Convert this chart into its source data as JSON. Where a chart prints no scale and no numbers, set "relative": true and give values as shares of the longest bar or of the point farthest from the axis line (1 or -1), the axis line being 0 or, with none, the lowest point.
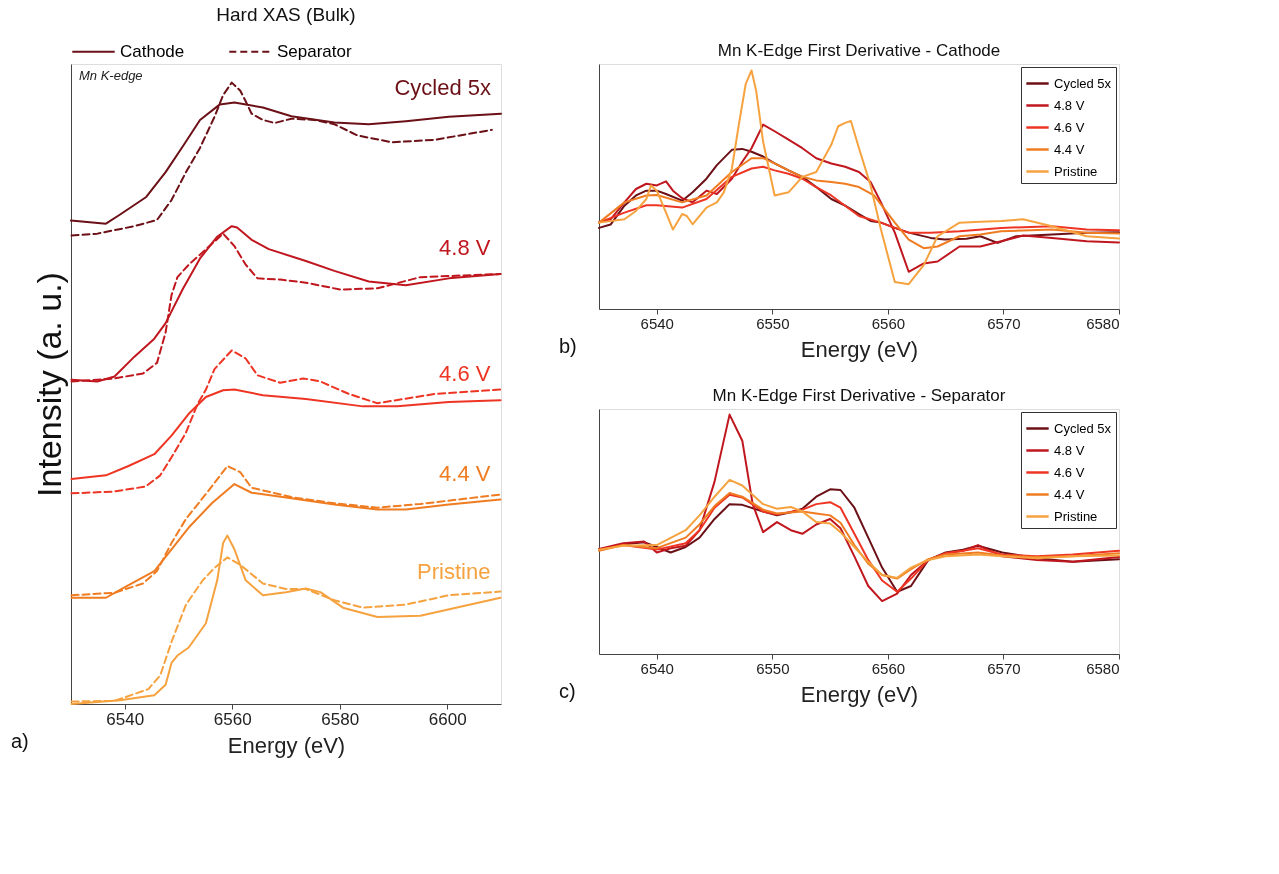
{
  "chart_data": [
    {
      "type": "line",
      "title": "Hard XAS (Bulk)",
      "xlabel": "Energy (eV)",
      "ylabel": "Intensity (a. u.)",
      "relative": true,
      "tick_labels": "x",
      "xlim": [
        6530,
        6610
      ],
      "xticks": [
        6540,
        6560,
        6580,
        6600
      ],
      "grid": false,
      "legend": "top",
      "marker": "none",
      "series": [
        {
          "name": "Cathode",
          "color": "#6b1016",
          "line_style": "solid",
          "x": [
            6530,
            6536.5,
            6539,
            6544,
            6547.6,
            6551,
            6554,
            6557.7,
            6560.4,
            6565.7,
            6571,
            6579,
            6585.4,
            6592.3,
            6600.3,
            6610
          ],
          "values": [
            0.778,
            0.773,
            0.787,
            0.816,
            0.856,
            0.9,
            0.94,
            0.965,
            0.968,
            0.96,
            0.946,
            0.936,
            0.933,
            0.938,
            0.945,
            0.95
          ]
        },
        {
          "name": "Separator",
          "color": "#6b1016",
          "line_style": "dashed",
          "x": [
            6530.1,
            6534.9,
            6541.8,
            6546,
            6548.7,
            6551.4,
            6554,
            6556.7,
            6558.3,
            6559.9,
            6561.5,
            6562.5,
            6563.6,
            6565.7,
            6567.9,
            6571,
            6575.3,
            6579,
            6583.3,
            6589.7,
            6597.7,
            6608.3
          ],
          "values": [
            0.754,
            0.757,
            0.769,
            0.779,
            0.811,
            0.856,
            0.895,
            0.945,
            0.98,
            1.0,
            0.987,
            0.97,
            0.95,
            0.94,
            0.935,
            0.942,
            0.94,
            0.933,
            0.915,
            0.904,
            0.908,
            0.924
          ]
        },
        {
          "color": "#c0171f",
          "line_style": "solid",
          "x": [
            6530.1,
            6534.9,
            6538.1,
            6541.8,
            6545.5,
            6547.6,
            6550.8,
            6554,
            6557.2,
            6559.9,
            6560.9,
            6563.6,
            6566.8,
            6573.7,
            6579,
            6585.4,
            6592.3,
            6600.3,
            6609.9
          ],
          "values": [
            0.522,
            0.519,
            0.527,
            0.559,
            0.588,
            0.613,
            0.668,
            0.717,
            0.752,
            0.769,
            0.767,
            0.747,
            0.732,
            0.713,
            0.697,
            0.68,
            0.674,
            0.685,
            0.692
          ]
        },
        {
          "color": "#c0171f",
          "line_style": "dashed",
          "x": [
            6530.1,
            6538.1,
            6543.4,
            6546,
            6547.6,
            6548.7,
            6549.8,
            6551.9,
            6554.5,
            6558.3,
            6560.4,
            6562.5,
            6564.7,
            6568.9,
            6573.7,
            6580.1,
            6587,
            6595,
            6609.9
          ],
          "values": [
            0.519,
            0.524,
            0.532,
            0.549,
            0.598,
            0.658,
            0.687,
            0.707,
            0.727,
            0.757,
            0.737,
            0.707,
            0.685,
            0.683,
            0.678,
            0.667,
            0.669,
            0.687,
            0.692
          ]
        },
        {
          "color": "#ee3524",
          "line_style": "solid",
          "x": [
            6530.1,
            6536.5,
            6540.7,
            6545.5,
            6548.7,
            6551.9,
            6555.1,
            6558.3,
            6560.4,
            6565.7,
            6573.7,
            6584.3,
            6590.7,
            6600.3,
            6609.9
          ],
          "values": [
            0.362,
            0.368,
            0.383,
            0.402,
            0.432,
            0.467,
            0.494,
            0.505,
            0.506,
            0.497,
            0.491,
            0.479,
            0.479,
            0.486,
            0.489
          ]
        },
        {
          "color": "#ee3524",
          "line_style": "dashed",
          "x": [
            6530.1,
            6538.1,
            6543.9,
            6546.6,
            6548.7,
            6551.4,
            6553.5,
            6555.1,
            6556.7,
            6559.9,
            6562.5,
            6564.7,
            6568.9,
            6573.2,
            6576.4,
            6581.7,
            6587,
            6597.7,
            6609.9
          ],
          "values": [
            0.339,
            0.342,
            0.35,
            0.368,
            0.397,
            0.437,
            0.482,
            0.506,
            0.539,
            0.569,
            0.556,
            0.529,
            0.517,
            0.524,
            0.519,
            0.499,
            0.484,
            0.499,
            0.506
          ]
        },
        {
          "color": "#f07c22",
          "line_style": "solid",
          "x": [
            6530.1,
            6536.5,
            6540.2,
            6545.5,
            6548.7,
            6551.9,
            6556.2,
            6560.4,
            6563.6,
            6571,
            6579,
            6587,
            6592.3,
            6600.3,
            6609.9
          ],
          "values": [
            0.171,
            0.171,
            0.189,
            0.214,
            0.249,
            0.284,
            0.323,
            0.354,
            0.34,
            0.331,
            0.321,
            0.313,
            0.313,
            0.321,
            0.329
          ]
        },
        {
          "color": "#f07c22",
          "line_style": "dashed",
          "x": [
            6530.1,
            6538.1,
            6543.4,
            6546,
            6548.7,
            6551.4,
            6555.1,
            6559.1,
            6561.5,
            6563.6,
            6571,
            6579,
            6587,
            6595,
            6609.9
          ],
          "values": [
            0.175,
            0.179,
            0.194,
            0.214,
            0.259,
            0.298,
            0.338,
            0.383,
            0.373,
            0.348,
            0.333,
            0.323,
            0.316,
            0.322,
            0.337
          ]
        },
        {
          "color": "#f5a23f",
          "line_style": "solid",
          "x": [
            6530.1,
            6539.1,
            6545.5,
            6547.6,
            6548.7,
            6549.8,
            6551.9,
            6555.1,
            6557.2,
            6558.3,
            6559.1,
            6560.4,
            6562.5,
            6565.7,
            6570,
            6573.7,
            6576.4,
            6580.6,
            6587,
            6595,
            6609.9
          ],
          "values": [
            0,
            0.006,
            0.014,
            0.031,
            0.066,
            0.078,
            0.091,
            0.13,
            0.199,
            0.259,
            0.271,
            0.249,
            0.199,
            0.175,
            0.18,
            0.186,
            0.18,
            0.155,
            0.14,
            0.142,
            0.171
          ]
        },
        {
          "color": "#f5a23f",
          "line_style": "dashed",
          "x": [
            6530.1,
            6538.1,
            6544.4,
            6546.6,
            6548.7,
            6551.4,
            6554.5,
            6556.7,
            6559.1,
            6561.5,
            6565.7,
            6570,
            6573.7,
            6579,
            6584.3,
            6592.3,
            6600.3,
            6609.9
          ],
          "values": [
            0.004,
            0.005,
            0.024,
            0.046,
            0.1,
            0.16,
            0.199,
            0.219,
            0.236,
            0.224,
            0.194,
            0.185,
            0.185,
            0.167,
            0.155,
            0.16,
            0.175,
            0.181
          ]
        }
      ],
      "annotations": [
        "Cycled 5x",
        "4.8 V",
        "4.6 V",
        "4.4 V",
        "Pristine",
        "Mn K-edge",
        "a)"
      ]
    },
    {
      "type": "line",
      "title": "Mn K-Edge First Derivative - Cathode",
      "xlabel": "Energy (eV)",
      "relative": true,
      "tick_labels": "x",
      "xlim": [
        6535,
        6580
      ],
      "xticks": [
        6540,
        6550,
        6560,
        6570,
        6580
      ],
      "grid": false,
      "legend": "top right",
      "marker": "none",
      "line_style": "solid",
      "series": [
        {
          "name": "Cycled 5x",
          "color": "#6b1016",
          "x": [
            6535,
            6536,
            6537.2,
            6538.2,
            6539.1,
            6540,
            6540.8,
            6542.2,
            6543.1,
            6544.3,
            6545.2,
            6546.5,
            6547.4,
            6548.2,
            6549.2,
            6550.2,
            6551.4,
            6552.6,
            6553.8,
            6555.1,
            6556.3,
            6557.5,
            6558.5,
            6559.4,
            6560.6,
            6561.8,
            6563.7,
            6564.9,
            6566.8,
            6568,
            6569.5,
            6571.1,
            6574.2,
            6577.2,
            6580
          ],
          "values": [
            0.34,
            0.354,
            0.433,
            0.476,
            0.496,
            0.496,
            0.482,
            0.454,
            0.489,
            0.546,
            0.603,
            0.667,
            0.671,
            0.659,
            0.639,
            0.61,
            0.581,
            0.554,
            0.511,
            0.461,
            0.433,
            0.398,
            0.369,
            0.362,
            0.34,
            0.32,
            0.298,
            0.291,
            0.294,
            0.305,
            0.277,
            0.305,
            0.312,
            0.32,
            0.322
          ]
        },
        {
          "name": "4.8 V",
          "color": "#c0171f",
          "x": [
            6535,
            6536,
            6537.2,
            6538.2,
            6539.1,
            6540,
            6540.8,
            6541.4,
            6542.2,
            6543.1,
            6544.3,
            6545.2,
            6546.5,
            6547.4,
            6548.2,
            6549.2,
            6550.2,
            6551.4,
            6552.6,
            6553.8,
            6555.1,
            6556.3,
            6557.5,
            6558.5,
            6559.4,
            6560.6,
            6561.8,
            6563.1,
            6564.3,
            6566.2,
            6568,
            6569.8,
            6571.7,
            6574.2,
            6577.2,
            6580
          ],
          "values": [
            0.364,
            0.376,
            0.447,
            0.503,
            0.525,
            0.518,
            0.535,
            0.496,
            0.464,
            0.447,
            0.496,
            0.482,
            0.546,
            0.617,
            0.674,
            0.773,
            0.745,
            0.71,
            0.674,
            0.632,
            0.61,
            0.596,
            0.574,
            0.532,
            0.447,
            0.32,
            0.156,
            0.191,
            0.199,
            0.262,
            0.262,
            0.284,
            0.308,
            0.298,
            0.284,
            0.279
          ]
        },
        {
          "name": "4.6 V",
          "color": "#ee3524",
          "x": [
            6535,
            6537.2,
            6539.1,
            6540,
            6542.2,
            6544.3,
            6546.5,
            6548.2,
            6549.2,
            6550.2,
            6551.4,
            6552.6,
            6553.8,
            6555.1,
            6556.3,
            6557.5,
            6559.4,
            6560.6,
            6561.8,
            6563.7,
            6566.2,
            6569.8,
            6574.2,
            6577.2,
            6580
          ],
          "values": [
            0.362,
            0.404,
            0.435,
            0.435,
            0.425,
            0.461,
            0.554,
            0.589,
            0.596,
            0.581,
            0.567,
            0.546,
            0.511,
            0.476,
            0.433,
            0.39,
            0.362,
            0.34,
            0.32,
            0.32,
            0.326,
            0.34,
            0.347,
            0.333,
            0.33
          ]
        },
        {
          "name": "4.4 V",
          "color": "#f07c22",
          "x": [
            6535,
            6537.2,
            6539.1,
            6540,
            6542.2,
            6544.3,
            6546.5,
            6548.2,
            6549.2,
            6550.2,
            6551.4,
            6552.6,
            6553.8,
            6555.1,
            6556.3,
            6557.5,
            6558.8,
            6560.6,
            6561.8,
            6563.1,
            6564.3,
            6566.2,
            6568,
            6569.8,
            6574.2,
            6577.2,
            6580
          ],
          "values": [
            0.362,
            0.447,
            0.476,
            0.478,
            0.447,
            0.476,
            0.574,
            0.632,
            0.632,
            0.61,
            0.581,
            0.554,
            0.539,
            0.532,
            0.525,
            0.511,
            0.476,
            0.362,
            0.291,
            0.255,
            0.262,
            0.305,
            0.312,
            0.326,
            0.333,
            0.32,
            0.316
          ]
        },
        {
          "name": "Pristine",
          "color": "#f5a23f",
          "x": [
            6535,
            6537.2,
            6538.2,
            6539.1,
            6539.5,
            6540,
            6540.8,
            6541.4,
            6542.2,
            6542.6,
            6543.1,
            6544.3,
            6545.2,
            6545.8,
            6546.5,
            6547.1,
            6547.7,
            6548.2,
            6548.6,
            6549.2,
            6550.2,
            6551.4,
            6552.6,
            6553.8,
            6555.1,
            6555.7,
            6556.3,
            6556.8,
            6557.5,
            6558.5,
            6559.4,
            6560.6,
            6561.8,
            6563.1,
            6564.3,
            6566.2,
            6568,
            6569.8,
            6571.7,
            6574.2,
            6577.2,
            6580
          ],
          "values": [
            0.362,
            0.376,
            0.411,
            0.461,
            0.518,
            0.496,
            0.404,
            0.333,
            0.398,
            0.39,
            0.355,
            0.425,
            0.447,
            0.489,
            0.589,
            0.773,
            0.944,
            1.0,
            0.915,
            0.702,
            0.476,
            0.489,
            0.554,
            0.574,
            0.688,
            0.766,
            0.78,
            0.788,
            0.674,
            0.518,
            0.333,
            0.113,
            0.104,
            0.184,
            0.305,
            0.362,
            0.366,
            0.369,
            0.376,
            0.347,
            0.305,
            0.295
          ]
        }
      ],
      "annotations": [
        "b)"
      ]
    },
    {
      "type": "line",
      "title": "Mn K-Edge First Derivative - Separator",
      "xlabel": "Energy (eV)",
      "relative": true,
      "tick_labels": "x",
      "xlim": [
        6535,
        6580
      ],
      "xticks": [
        6540,
        6550,
        6560,
        6570,
        6580
      ],
      "grid": false,
      "legend": "top right",
      "marker": "none",
      "line_style": "solid",
      "series": [
        {
          "name": "Cycled 5x",
          "color": "#6b1016",
          "x": [
            6535,
            6537.1,
            6538.9,
            6540,
            6541.2,
            6542.5,
            6543.7,
            6545,
            6546.3,
            6547.4,
            6549.2,
            6550.4,
            6551.6,
            6552.6,
            6553.8,
            6555,
            6555.9,
            6557.1,
            6558.3,
            6559.5,
            6560.8,
            6562,
            6563.5,
            6565,
            6566.5,
            6567.8,
            6569.9,
            6572.9,
            6576,
            6580
          ],
          "values": [
            0.436,
            0.458,
            0.467,
            0.447,
            0.424,
            0.447,
            0.486,
            0.564,
            0.626,
            0.623,
            0.595,
            0.579,
            0.592,
            0.607,
            0.657,
            0.688,
            0.685,
            0.611,
            0.486,
            0.361,
            0.26,
            0.284,
            0.393,
            0.424,
            0.436,
            0.452,
            0.424,
            0.4,
            0.385,
            0.396
          ]
        },
        {
          "name": "4.8 V",
          "color": "#c0171f",
          "x": [
            6535,
            6537.1,
            6538.9,
            6540,
            6541.2,
            6542.5,
            6543.7,
            6545,
            6546.3,
            6547.4,
            6548.3,
            6549.2,
            6550.4,
            6551.6,
            6552.6,
            6553.8,
            6555,
            6555.9,
            6557.1,
            6558.3,
            6559.5,
            6560.8,
            6562,
            6563.5,
            6565,
            6566.5,
            6567.8,
            6569.9,
            6572.9,
            6576,
            6580
          ],
          "values": [
            0.439,
            0.463,
            0.47,
            0.424,
            0.442,
            0.452,
            0.517,
            0.72,
            1.0,
            0.891,
            0.626,
            0.509,
            0.551,
            0.517,
            0.502,
            0.541,
            0.564,
            0.525,
            0.408,
            0.284,
            0.221,
            0.252,
            0.33,
            0.393,
            0.421,
            0.431,
            0.455,
            0.408,
            0.393,
            0.385,
            0.405
          ]
        },
        {
          "name": "4.6 V",
          "color": "#ee3524",
          "x": [
            6535,
            6537.1,
            6540,
            6542.5,
            6543.7,
            6545,
            6546.3,
            6547.4,
            6549.2,
            6550.4,
            6552.6,
            6553.8,
            6555,
            6555.9,
            6557.1,
            6558.3,
            6559.5,
            6560.8,
            6562,
            6563.5,
            6565,
            6566.5,
            6567.8,
            6569.9,
            6572.9,
            6576,
            6580
          ],
          "values": [
            0.436,
            0.455,
            0.436,
            0.463,
            0.517,
            0.611,
            0.665,
            0.654,
            0.595,
            0.583,
            0.603,
            0.626,
            0.634,
            0.611,
            0.502,
            0.393,
            0.307,
            0.26,
            0.315,
            0.393,
            0.421,
            0.431,
            0.442,
            0.416,
            0.408,
            0.416,
            0.431
          ]
        },
        {
          "name": "4.4 V",
          "color": "#f07c22",
          "x": [
            6535,
            6537.1,
            6540,
            6542.5,
            6543.7,
            6545,
            6546.3,
            6547.4,
            6549.2,
            6550.4,
            6552.6,
            6553.8,
            6555,
            6555.9,
            6557.1,
            6558.3,
            6559.5,
            6560.8,
            6562,
            6563.5,
            6565,
            6567.8,
            6569.9,
            6572.9,
            6576,
            6580
          ],
          "values": [
            0.431,
            0.455,
            0.442,
            0.486,
            0.541,
            0.618,
            0.673,
            0.657,
            0.603,
            0.587,
            0.595,
            0.587,
            0.579,
            0.548,
            0.455,
            0.377,
            0.33,
            0.315,
            0.354,
            0.396,
            0.416,
            0.424,
            0.411,
            0.405,
            0.408,
            0.421
          ]
        },
        {
          "name": "Pristine",
          "color": "#f5a23f",
          "x": [
            6535,
            6537.1,
            6540,
            6542.5,
            6543.7,
            6545,
            6546.3,
            6547.4,
            6549.2,
            6550.4,
            6551.6,
            6552.6,
            6553.8,
            6555,
            6555.9,
            6557.1,
            6558.3,
            6559.5,
            6560.8,
            6562,
            6563.5,
            6565,
            6567.8,
            6569.9,
            6572.9,
            6576,
            6580
          ],
          "values": [
            0.436,
            0.452,
            0.455,
            0.517,
            0.579,
            0.657,
            0.727,
            0.704,
            0.626,
            0.607,
            0.614,
            0.595,
            0.551,
            0.545,
            0.509,
            0.447,
            0.385,
            0.33,
            0.318,
            0.361,
            0.393,
            0.408,
            0.416,
            0.408,
            0.4,
            0.408,
            0.411
          ]
        }
      ],
      "annotations": [
        "c)"
      ]
    }
  ]
}
